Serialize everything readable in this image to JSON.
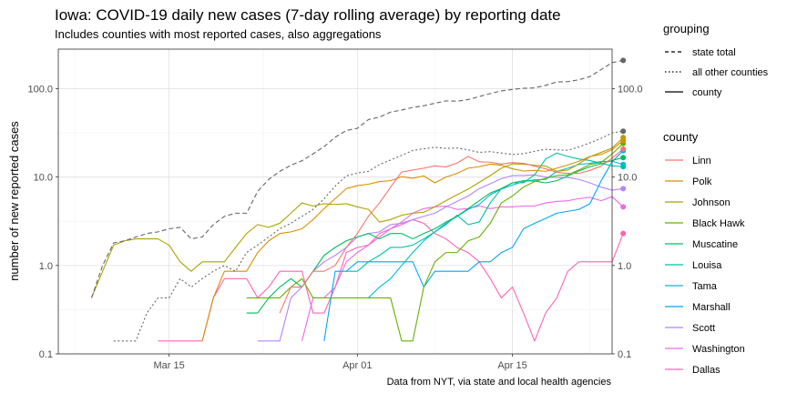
{
  "chart_data": {
    "type": "line",
    "title": "Iowa: COVID-19 daily new cases (7-day rolling average) by reporting date",
    "subtitle": "Includes counties with most reported cases, also aggregations",
    "ylabel": "number of new reported cases",
    "caption": "Data from NYT, via state and local health agencies",
    "y_scale": "log10",
    "ylim": [
      0.1,
      280
    ],
    "y_ticks": [
      {
        "value": 0.1,
        "label": "0.1"
      },
      {
        "value": 1,
        "label": "1.0"
      },
      {
        "value": 10,
        "label": "10.0"
      },
      {
        "value": 100,
        "label": "100.0"
      }
    ],
    "x_type": "date",
    "xlim": [
      "2020-03-05",
      "2020-04-24"
    ],
    "x_ticks": [
      {
        "date": "2020-03-15",
        "label": "Mar 15"
      },
      {
        "date": "2020-04-01",
        "label": "Apr 01"
      },
      {
        "date": "2020-04-15",
        "label": "Apr 15"
      }
    ],
    "x_start": "2020-03-08",
    "legend_grouping_title": "grouping",
    "legend_grouping": [
      {
        "label": "state total",
        "dash": "dashed"
      },
      {
        "label": "all other counties",
        "dash": "dotted"
      },
      {
        "label": "county",
        "dash": "solid"
      }
    ],
    "legend_county_title": "county",
    "series": [
      {
        "name": "state total",
        "group": "state total",
        "color": "#666666",
        "dash": "dashed",
        "values": [
          0.43,
          1.0,
          1.8,
          1.9,
          2.1,
          2.3,
          2.4,
          2.6,
          2.7,
          2.0,
          2.1,
          2.9,
          3.6,
          3.9,
          3.9,
          6.9,
          9.4,
          11.6,
          13.6,
          15.3,
          18.3,
          22.1,
          28.3,
          33.6,
          35.6,
          44.7,
          47.7,
          54.3,
          57.3,
          61.3,
          64.1,
          68.4,
          72.7,
          72.1,
          75.2,
          81.4,
          88.0,
          94.3,
          98.0,
          101.0,
          102.0,
          109.0,
          119.0,
          120.0,
          126.0,
          137.0,
          164.0,
          197.0,
          209.0
        ]
      },
      {
        "name": "all other counties",
        "group": "all other counties",
        "color": "#666666",
        "dash": "dotted",
        "values": [
          null,
          null,
          0.14,
          0.14,
          0.14,
          0.29,
          0.43,
          0.43,
          0.71,
          0.57,
          0.71,
          0.86,
          1.0,
          0.86,
          1.4,
          1.7,
          2.1,
          2.6,
          3.0,
          3.6,
          4.3,
          5.7,
          7.9,
          10.3,
          11.1,
          11.6,
          13.9,
          15.6,
          17.6,
          20.0,
          20.9,
          21.7,
          21.1,
          21.3,
          20.3,
          19.0,
          19.4,
          18.7,
          18.0,
          18.4,
          19.6,
          20.6,
          20.3,
          20.1,
          21.9,
          24.4,
          27.4,
          31.6,
          33.0
        ]
      },
      {
        "name": "Linn",
        "group": "county",
        "color": "#F8766D",
        "dash": "solid",
        "values": [
          null,
          null,
          null,
          null,
          null,
          null,
          null,
          null,
          null,
          null,
          null,
          null,
          null,
          null,
          null,
          null,
          null,
          0.29,
          0.57,
          0.57,
          0.86,
          0.86,
          1.0,
          1.6,
          2.3,
          3.6,
          5.1,
          7.7,
          11.4,
          12.0,
          12.6,
          13.4,
          13.0,
          14.4,
          17.1,
          14.9,
          14.7,
          14.0,
          14.6,
          14.3,
          13.3,
          12.4,
          11.3,
          11.0,
          11.0,
          11.9,
          13.3,
          16.4,
          20.7
        ]
      },
      {
        "name": "Polk",
        "group": "county",
        "color": "#DB8E00",
        "dash": "solid",
        "values": [
          null,
          null,
          null,
          null,
          null,
          null,
          null,
          null,
          null,
          null,
          0.14,
          0.43,
          0.86,
          0.86,
          0.86,
          1.4,
          1.9,
          2.3,
          2.4,
          2.6,
          3.3,
          4.4,
          5.7,
          7.4,
          8.0,
          8.3,
          8.9,
          9.1,
          10.1,
          9.7,
          10.3,
          8.6,
          10.0,
          11.0,
          12.6,
          13.1,
          14.0,
          13.6,
          12.4,
          11.7,
          11.9,
          11.6,
          12.6,
          13.7,
          15.1,
          17.1,
          18.0,
          20.4,
          26.0
        ]
      },
      {
        "name": "Johnson",
        "group": "county",
        "color": "#AEA200",
        "dash": "solid",
        "values": [
          0.43,
          0.86,
          1.7,
          1.9,
          2.0,
          2.0,
          2.0,
          1.7,
          1.1,
          0.86,
          1.1,
          1.1,
          1.1,
          1.6,
          2.3,
          2.9,
          2.7,
          3.0,
          3.9,
          5.1,
          4.7,
          5.0,
          4.9,
          5.0,
          4.6,
          4.3,
          3.1,
          3.3,
          3.7,
          3.9,
          4.0,
          4.6,
          5.4,
          6.3,
          7.3,
          8.7,
          10.4,
          12.6,
          14.1,
          14.0,
          13.6,
          13.3,
          11.6,
          12.0,
          14.1,
          17.0,
          19.0,
          21.3,
          28.0
        ]
      },
      {
        "name": "Black Hawk",
        "group": "county",
        "color": "#64B200",
        "dash": "solid",
        "values": [
          null,
          null,
          null,
          null,
          null,
          null,
          null,
          null,
          null,
          null,
          null,
          null,
          null,
          null,
          0.43,
          0.43,
          0.43,
          0.43,
          0.57,
          0.71,
          0.43,
          0.43,
          0.43,
          0.43,
          0.43,
          0.43,
          0.43,
          0.43,
          0.14,
          0.14,
          0.57,
          1.1,
          1.4,
          1.4,
          1.9,
          2.1,
          3.0,
          5.1,
          6.1,
          7.7,
          8.9,
          9.7,
          10.4,
          10.6,
          12.0,
          13.9,
          14.6,
          18.3,
          24.0
        ]
      },
      {
        "name": "Muscatine",
        "group": "county",
        "color": "#00BD5C",
        "dash": "solid",
        "values": [
          null,
          null,
          null,
          null,
          null,
          null,
          null,
          null,
          null,
          null,
          null,
          null,
          null,
          null,
          0.29,
          0.29,
          0.43,
          0.57,
          0.71,
          0.57,
          0.86,
          1.3,
          1.6,
          1.9,
          2.1,
          2.3,
          2.0,
          2.3,
          2.3,
          2.0,
          2.3,
          2.6,
          3.1,
          3.6,
          4.4,
          5.4,
          6.6,
          7.4,
          8.6,
          9.1,
          9.0,
          8.6,
          9.1,
          10.3,
          11.7,
          13.1,
          14.1,
          15.4,
          16.6
        ]
      },
      {
        "name": "Louisa",
        "group": "county",
        "color": "#00C1A7",
        "dash": "solid",
        "values": [
          null,
          null,
          null,
          null,
          null,
          null,
          null,
          null,
          null,
          null,
          null,
          null,
          null,
          null,
          null,
          null,
          null,
          null,
          null,
          null,
          null,
          null,
          null,
          0.86,
          0.86,
          1.1,
          1.3,
          1.6,
          1.6,
          1.7,
          2.0,
          2.4,
          2.9,
          3.7,
          2.9,
          3.1,
          5.1,
          7.4,
          8.6,
          8.6,
          10.6,
          16.0,
          18.7,
          17.1,
          16.0,
          15.4,
          14.3,
          13.4,
          13.1
        ]
      },
      {
        "name": "Tama",
        "group": "county",
        "color": "#00BADE",
        "dash": "solid",
        "values": [
          null,
          null,
          null,
          null,
          null,
          null,
          null,
          null,
          null,
          null,
          null,
          null,
          null,
          null,
          null,
          null,
          null,
          null,
          null,
          null,
          null,
          null,
          null,
          null,
          null,
          0.43,
          0.57,
          0.71,
          1.0,
          1.4,
          1.9,
          2.4,
          3.0,
          3.6,
          4.3,
          4.9,
          6.3,
          7.3,
          8.1,
          8.9,
          9.3,
          9.4,
          11.6,
          12.6,
          13.9,
          14.3,
          15.0,
          15.1,
          13.9
        ]
      },
      {
        "name": "Marshall",
        "group": "county",
        "color": "#00A6FF",
        "dash": "solid",
        "values": [
          null,
          null,
          null,
          null,
          null,
          null,
          null,
          null,
          null,
          null,
          null,
          null,
          null,
          null,
          null,
          null,
          null,
          null,
          null,
          null,
          null,
          0.14,
          0.86,
          0.86,
          1.1,
          1.1,
          1.1,
          1.1,
          1.1,
          1.1,
          0.57,
          0.86,
          0.86,
          0.86,
          0.86,
          1.1,
          1.1,
          1.4,
          1.6,
          2.6,
          3.0,
          3.4,
          3.9,
          4.1,
          4.3,
          5.0,
          9.0,
          14.9,
          19.9
        ]
      },
      {
        "name": "Scott",
        "group": "county",
        "color": "#B385FF",
        "dash": "solid",
        "values": [
          null,
          null,
          null,
          null,
          null,
          null,
          null,
          null,
          null,
          null,
          null,
          null,
          null,
          null,
          null,
          0.14,
          0.14,
          0.14,
          0.43,
          0.57,
          0.86,
          1.1,
          1.3,
          1.6,
          2.1,
          2.3,
          2.4,
          2.9,
          3.0,
          3.3,
          3.6,
          3.9,
          4.6,
          5.3,
          6.1,
          7.4,
          8.4,
          9.6,
          10.4,
          10.4,
          10.6,
          10.0,
          9.9,
          9.9,
          9.4,
          8.6,
          7.7,
          7.1,
          7.4
        ]
      },
      {
        "name": "Washington",
        "group": "county",
        "color": "#EF67EB",
        "dash": "solid",
        "values": [
          null,
          null,
          null,
          null,
          null,
          null,
          null,
          null,
          null,
          null,
          null,
          null,
          null,
          null,
          null,
          null,
          null,
          null,
          null,
          0.14,
          0.43,
          0.43,
          0.57,
          1.1,
          1.4,
          1.7,
          2.1,
          2.6,
          3.1,
          3.9,
          4.4,
          4.6,
          4.7,
          4.3,
          4.4,
          4.7,
          4.4,
          4.6,
          4.6,
          4.7,
          4.7,
          5.1,
          5.3,
          5.4,
          5.7,
          5.9,
          5.4,
          6.0,
          4.6
        ]
      },
      {
        "name": "Dallas",
        "group": "county",
        "color": "#FF63B6",
        "dash": "solid",
        "values": [
          null,
          null,
          null,
          null,
          null,
          null,
          0.14,
          0.14,
          0.14,
          0.14,
          0.14,
          0.43,
          0.71,
          0.71,
          0.71,
          0.43,
          0.57,
          0.86,
          0.86,
          0.86,
          0.29,
          0.29,
          0.57,
          1.4,
          1.6,
          1.7,
          2.3,
          2.6,
          2.9,
          3.3,
          3.0,
          2.3,
          2.0,
          1.6,
          1.4,
          1.1,
          0.71,
          0.43,
          0.57,
          0.29,
          0.14,
          0.29,
          0.43,
          0.86,
          1.1,
          1.1,
          1.1,
          1.1,
          2.3
        ]
      }
    ]
  }
}
